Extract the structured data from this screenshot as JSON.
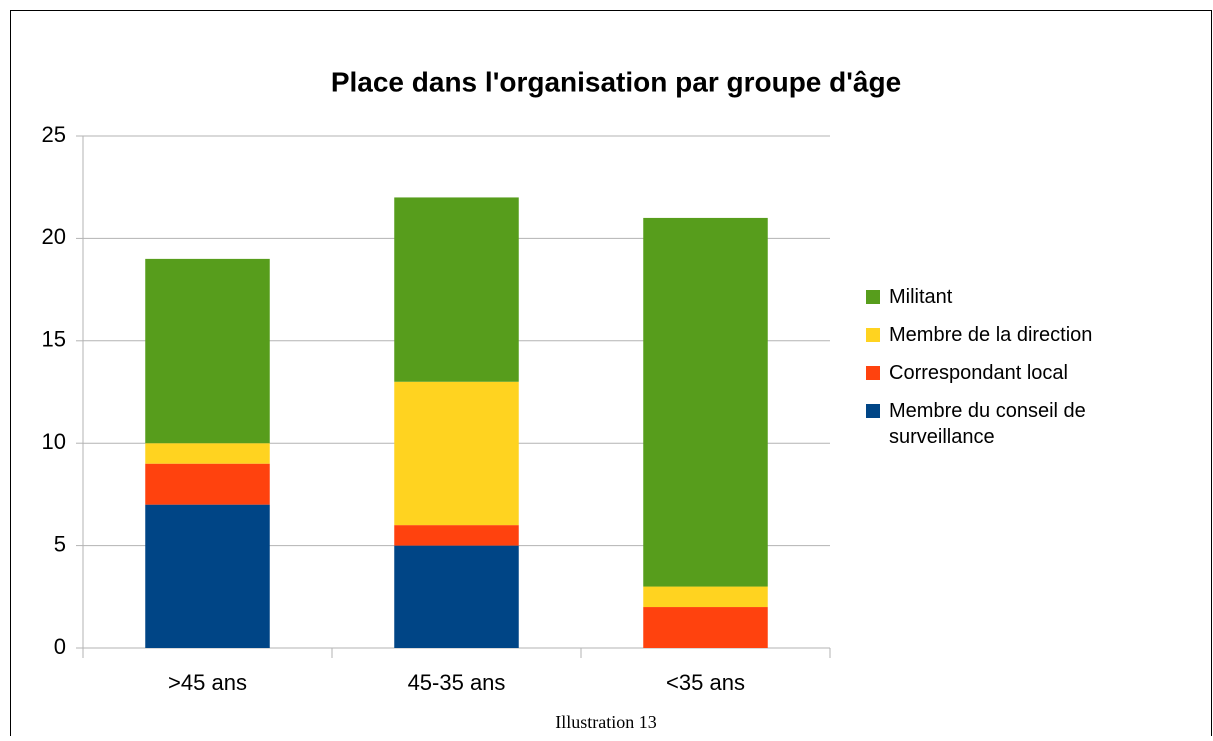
{
  "chart_data": {
    "type": "stacked-bar",
    "title": "Place dans l'organisation par groupe d'âge",
    "caption": "Illustration 13",
    "categories": [
      ">45 ans",
      "45-35 ans",
      "<35 ans"
    ],
    "series": [
      {
        "name": "Membre du conseil de surveillance",
        "color": "#004586",
        "values": [
          7,
          5,
          0
        ]
      },
      {
        "name": "Correspondant local",
        "color": "#ff420e",
        "values": [
          2,
          1,
          2
        ]
      },
      {
        "name": "Membre de la direction",
        "color": "#ffd320",
        "values": [
          1,
          7,
          1
        ]
      },
      {
        "name": "Militant",
        "color": "#579d1c",
        "values": [
          9,
          9,
          18
        ]
      }
    ],
    "ylim": [
      0,
      25
    ],
    "yticks": [
      0,
      5,
      10,
      15,
      20,
      25
    ],
    "grid": true,
    "legend": "right"
  }
}
